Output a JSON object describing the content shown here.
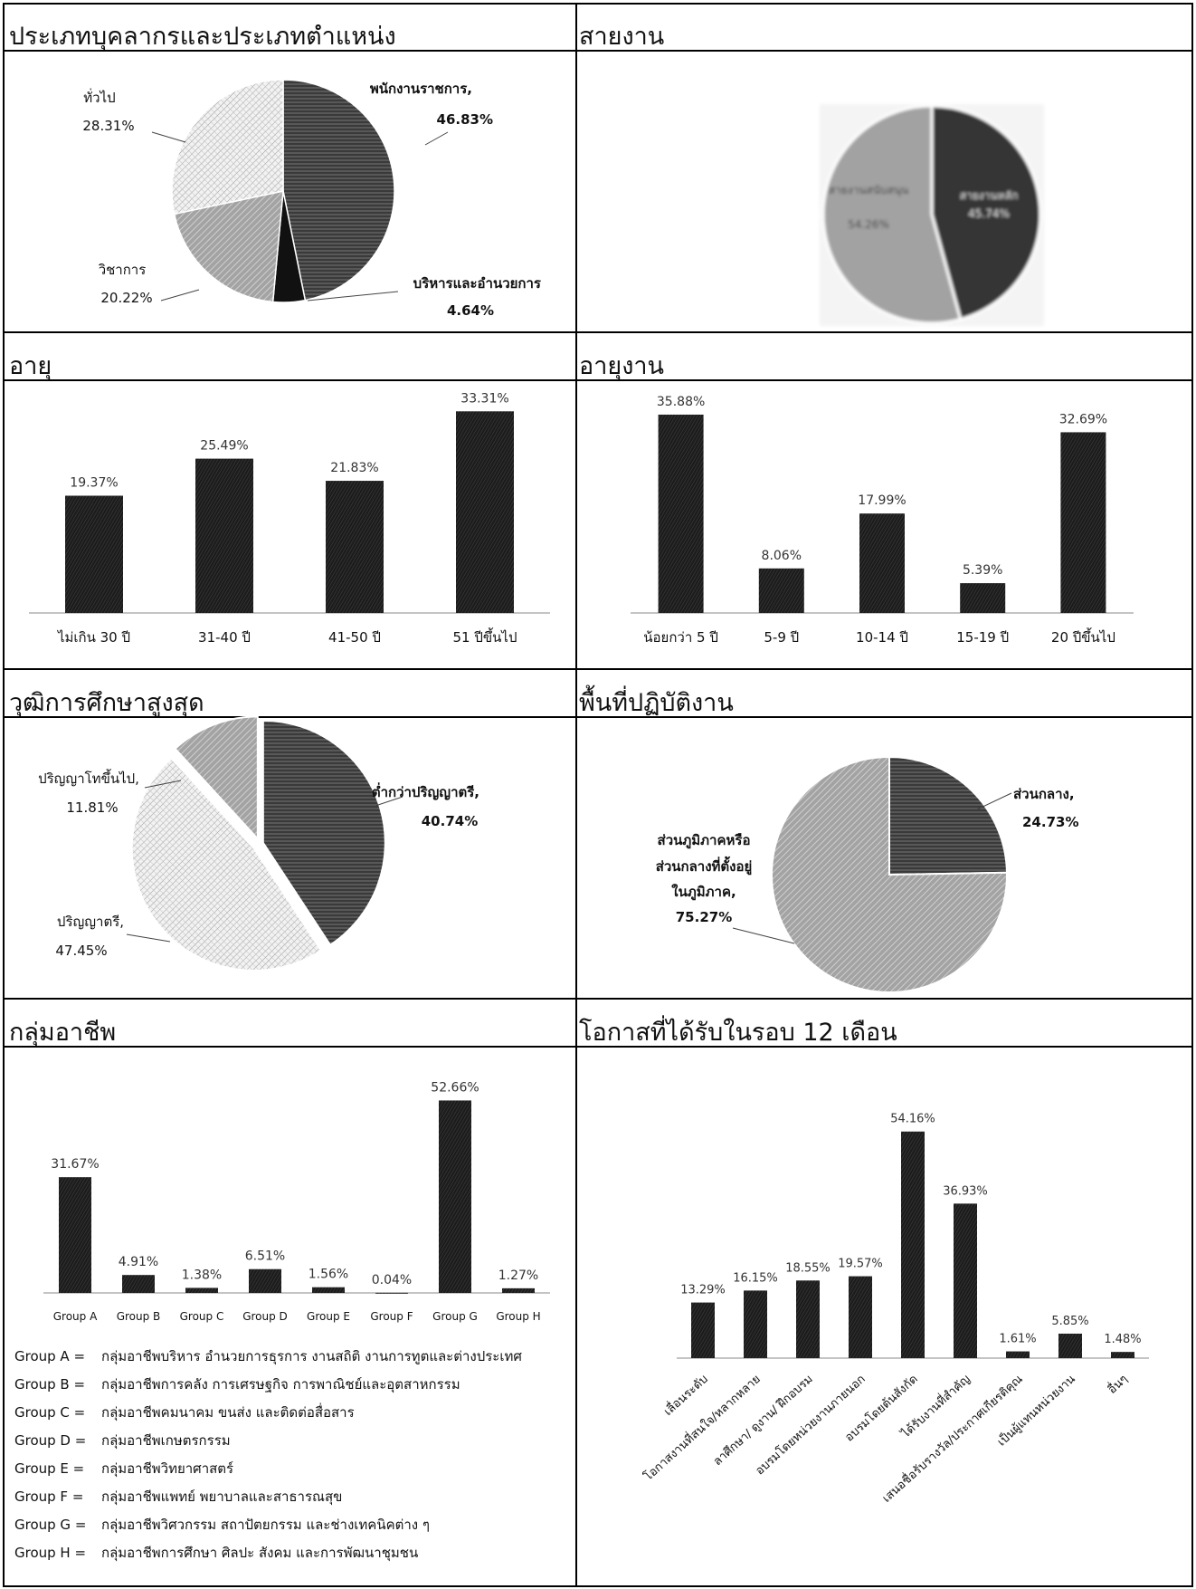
{
  "panels": {
    "personnel": {
      "title": "ประเภทบุคลากรและประเภทตำแหน่ง",
      "chart_data": {
        "type": "pie",
        "slices": [
          {
            "label": "พนักงานราชการ,",
            "value": 46.83,
            "value_label": "46.83%",
            "color": "#4a4a4a"
          },
          {
            "label": "บริหารและอำนวยการ",
            "value": 4.64,
            "value_label": "4.64%",
            "color": "#111111"
          },
          {
            "label": "วิชาการ",
            "value": 20.22,
            "value_label": "20.22%",
            "color": "#a8a8a8"
          },
          {
            "label": "ทั่วไป",
            "value": 28.31,
            "value_label": "28.31%",
            "color": "#e3e3e3"
          }
        ]
      }
    },
    "line_of_work": {
      "title": "สายงาน",
      "chart_data": {
        "type": "pie",
        "slices": [
          {
            "label": "สายงานหลัก",
            "value": 45.74,
            "value_label": "45.74%",
            "color": "#3a3a3a"
          },
          {
            "label": "สายงานสนับสนุน",
            "value": 54.26,
            "value_label": "54.26%",
            "color": "#a9a9a9"
          }
        ]
      }
    },
    "age": {
      "title": "อายุ",
      "chart_data": {
        "type": "bar",
        "categories": [
          "ไม่เกิน 30 ปี",
          "31-40 ปี",
          "41-50 ปี",
          "51 ปีขึ้นไป"
        ],
        "values": [
          19.37,
          25.49,
          21.83,
          33.31
        ],
        "value_labels": [
          "19.37%",
          "25.49%",
          "21.83%",
          "33.31%"
        ],
        "ylim": [
          0,
          35
        ]
      }
    },
    "tenure": {
      "title": "อายุงาน",
      "chart_data": {
        "type": "bar",
        "categories": [
          "น้อยกว่า 5 ปี",
          "5-9 ปี",
          "10-14 ปี",
          "15-19 ปี",
          "20 ปีขึ้นไป"
        ],
        "values": [
          35.88,
          8.06,
          17.99,
          5.39,
          32.69
        ],
        "value_labels": [
          "35.88%",
          "8.06%",
          "17.99%",
          "5.39%",
          "32.69%"
        ],
        "ylim": [
          0,
          38
        ]
      }
    },
    "education": {
      "title": "วุฒิการศึกษาสูงสุด",
      "chart_data": {
        "type": "pie",
        "slices": [
          {
            "label": "ต่ำกว่าปริญญาตรี,",
            "value": 40.74,
            "value_label": "40.74%",
            "color": "#333333"
          },
          {
            "label": "ปริญญาตรี,",
            "value": 47.45,
            "value_label": "47.45%",
            "color": "#e4e4e4"
          },
          {
            "label": "ปริญญาโทขึ้นไป,",
            "value": 11.81,
            "value_label": "11.81%",
            "color": "#8e8e8e"
          }
        ]
      }
    },
    "work_area": {
      "title": "พื้นที่ปฏิบัติงาน",
      "chart_data": {
        "type": "pie",
        "slices": [
          {
            "label": "ส่วนกลาง,",
            "value": 24.73,
            "value_label": "24.73%",
            "color": "#3b3b3b"
          },
          {
            "label": "ส่วนภูมิภาคหรือ ส่วนกลางที่ตั้งอยู่ ในภูมิภาค,",
            "value": 75.27,
            "value_label": "75.27%",
            "color": "#8a8a8a"
          }
        ]
      }
    },
    "occupation": {
      "title": "กลุ่มอาชีพ",
      "chart_data": {
        "type": "bar",
        "categories": [
          "Group A",
          "Group B",
          "Group C",
          "Group D",
          "Group E",
          "Group F",
          "Group G",
          "Group H"
        ],
        "values": [
          31.67,
          4.91,
          1.38,
          6.51,
          1.56,
          0.04,
          52.66,
          1.27
        ],
        "value_labels": [
          "31.67%",
          "4.91%",
          "1.38%",
          "6.51%",
          "1.56%",
          "0.04%",
          "52.66%",
          "1.27%"
        ],
        "ylim": [
          0,
          55
        ]
      },
      "legend": [
        {
          "key": "Group A =",
          "text": "กลุ่มอาชีพบริหาร อำนวยการธุรการ งานสถิติ งานการทูตและต่างประเทศ"
        },
        {
          "key": "Group B =",
          "text": "กลุ่มอาชีพการคลัง การเศรษฐกิจ การพาณิชย์และอุตสาหกรรม"
        },
        {
          "key": "Group C =",
          "text": "กลุ่มอาชีพคมนาคม ขนส่ง และติดต่อสื่อสาร"
        },
        {
          "key": "Group D =",
          "text": "กลุ่มอาชีพเกษตรกรรม"
        },
        {
          "key": "Group E =",
          "text": "กลุ่มอาชีพวิทยาศาสตร์"
        },
        {
          "key": "Group F =",
          "text": "กลุ่มอาชีพแพทย์ พยาบาลและสาธารณสุข"
        },
        {
          "key": "Group G =",
          "text": "กลุ่มอาชีพวิศวกรรม สถาปัตยกรรม และช่างเทคนิคต่าง ๆ"
        },
        {
          "key": "Group H =",
          "text": "กลุ่มอาชีพการศึกษา ศิลปะ สังคม และการพัฒนาชุมชน"
        }
      ]
    },
    "opportunities": {
      "title": "โอกาสที่ได้รับในรอบ 12 เดือน",
      "chart_data": {
        "type": "bar",
        "categories": [
          "เลื่อนระดับ",
          "โอกาสงานที่สนใจ/หลากหลาย",
          "ลาศึกษา/ ดูงาน/ ฝึกอบรม",
          "อบรมโดยหน่วยงานภายนอก",
          "อบรมโดยต้นสังกัด",
          "ได้รับงานที่สำคัญ",
          "เสนอชื่อรับรางวัล/ประกาศเกียรติคุณ",
          "เป็นผู้แทนหน่วยงาน",
          "อื่นๆ"
        ],
        "values": [
          13.29,
          16.15,
          18.55,
          19.57,
          54.16,
          36.93,
          1.61,
          5.85,
          1.48
        ],
        "value_labels": [
          "13.29%",
          "16.15%",
          "18.55%",
          "19.57%",
          "54.16%",
          "36.93%",
          "1.61%",
          "5.85%",
          "1.48%"
        ],
        "ylim": [
          0,
          58
        ]
      }
    }
  }
}
